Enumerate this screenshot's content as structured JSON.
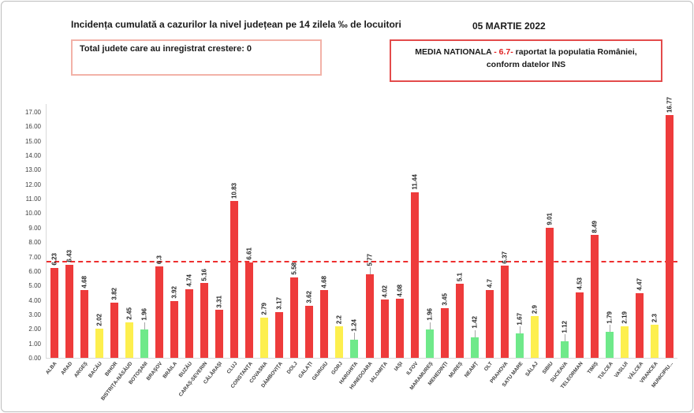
{
  "header": {
    "title": "Incidența cumulată a cazurilor la nivel județean pe 14 zilela ‰ de locuitori",
    "date": "05 MARTIE 2022",
    "growth_box_label": "Total judete care au inregistrat crestere: 0",
    "media_box": {
      "prefix": "MEDIA NATIONALA ",
      "value": "- 6.7- ",
      "suffix": " raportat la populatia României,",
      "line2": "conform datelor INS"
    }
  },
  "chart_data": {
    "type": "bar",
    "title": "Incidența cumulată a cazurilor la nivel județean pe 14 zilela ‰ de locuitori",
    "xlabel": "",
    "ylabel": "",
    "ylim": [
      0,
      17
    ],
    "ytick_step": 1,
    "grid": false,
    "legend": "none",
    "reference_line": {
      "value": 6.7,
      "label": "MEDIA NATIONALA",
      "color": "#ed2f2f",
      "style": "dashed"
    },
    "colors": {
      "red": "#ee3b3b",
      "yellow": "#fdef4e",
      "green": "#6fe98a"
    },
    "color_rule": "green: value < 2, yellow: 2 <= value < 3, red: value >= 3",
    "bars": [
      {
        "label": "ALBA",
        "value": 6.23,
        "color": "red",
        "leader": false
      },
      {
        "label": "ARAD",
        "value": 6.43,
        "color": "red",
        "leader": false
      },
      {
        "label": "ARGEȘ",
        "value": 4.68,
        "color": "red",
        "leader": false
      },
      {
        "label": "BACĂU",
        "value": 2.02,
        "color": "yellow",
        "leader": false
      },
      {
        "label": "BIHOR",
        "value": 3.82,
        "color": "red",
        "leader": false
      },
      {
        "label": "BISTRIȚA-NĂSĂUD",
        "value": 2.45,
        "color": "yellow",
        "leader": false
      },
      {
        "label": "BOTOȘANI",
        "value": 1.96,
        "color": "green",
        "leader": true
      },
      {
        "label": "BRAȘOV",
        "value": 6.3,
        "color": "red",
        "leader": false
      },
      {
        "label": "BRĂILA",
        "value": 3.92,
        "color": "red",
        "leader": false
      },
      {
        "label": "BUZĂU",
        "value": 4.74,
        "color": "red",
        "leader": false
      },
      {
        "label": "CARAȘ-SEVERIN",
        "value": 5.16,
        "color": "red",
        "leader": false
      },
      {
        "label": "CĂLĂRAȘI",
        "value": 3.31,
        "color": "red",
        "leader": false
      },
      {
        "label": "CLUJ",
        "value": 10.83,
        "color": "red",
        "leader": false
      },
      {
        "label": "CONSTANȚA",
        "value": 6.61,
        "color": "red",
        "leader": false
      },
      {
        "label": "COVASNA",
        "value": 2.79,
        "color": "yellow",
        "leader": false
      },
      {
        "label": "DÂMBOVIȚA",
        "value": 3.17,
        "color": "red",
        "leader": false
      },
      {
        "label": "DOLJ",
        "value": 5.58,
        "color": "red",
        "leader": false
      },
      {
        "label": "GALAȚI",
        "value": 3.62,
        "color": "red",
        "leader": false
      },
      {
        "label": "GIURGIU",
        "value": 4.68,
        "color": "red",
        "leader": false
      },
      {
        "label": "GORJ",
        "value": 2.2,
        "color": "yellow",
        "leader": false
      },
      {
        "label": "HARGHITA",
        "value": 1.24,
        "color": "green",
        "leader": true
      },
      {
        "label": "HUNEDOARA",
        "value": 5.77,
        "color": "red",
        "leader": true
      },
      {
        "label": "IALOMIȚA",
        "value": 4.02,
        "color": "red",
        "leader": false
      },
      {
        "label": "IAȘI",
        "value": 4.08,
        "color": "red",
        "leader": false
      },
      {
        "label": "ILFOV",
        "value": 11.44,
        "color": "red",
        "leader": false
      },
      {
        "label": "MARAMUREȘ",
        "value": 1.96,
        "color": "green",
        "leader": true
      },
      {
        "label": "MEHEDINȚI",
        "value": 3.45,
        "color": "red",
        "leader": false
      },
      {
        "label": "MUREȘ",
        "value": 5.1,
        "color": "red",
        "leader": false
      },
      {
        "label": "NEAMȚ",
        "value": 1.42,
        "color": "green",
        "leader": true
      },
      {
        "label": "OLT",
        "value": 4.7,
        "color": "red",
        "leader": false
      },
      {
        "label": "PRAHOVA",
        "value": 6.37,
        "color": "red",
        "leader": false
      },
      {
        "label": "SATU MARE",
        "value": 1.67,
        "color": "green",
        "leader": true
      },
      {
        "label": "SĂLAJ",
        "value": 2.9,
        "color": "yellow",
        "leader": false
      },
      {
        "label": "SIBIU",
        "value": 9.01,
        "color": "red",
        "leader": false
      },
      {
        "label": "SUCEAVA",
        "value": 1.12,
        "color": "green",
        "leader": true
      },
      {
        "label": "TELEORMAN",
        "value": 4.53,
        "color": "red",
        "leader": false
      },
      {
        "label": "TIMIȘ",
        "value": 8.49,
        "color": "red",
        "leader": false
      },
      {
        "label": "TULCEA",
        "value": 1.79,
        "color": "green",
        "leader": true
      },
      {
        "label": "VASLUI",
        "value": 2.19,
        "color": "yellow",
        "leader": false
      },
      {
        "label": "VÂLCEA",
        "value": 4.47,
        "color": "red",
        "leader": false
      },
      {
        "label": "VRANCEA",
        "value": 2.3,
        "color": "yellow",
        "leader": false
      },
      {
        "label": "MUNICIPIU...",
        "value": 16.77,
        "color": "red",
        "leader": false
      }
    ]
  }
}
